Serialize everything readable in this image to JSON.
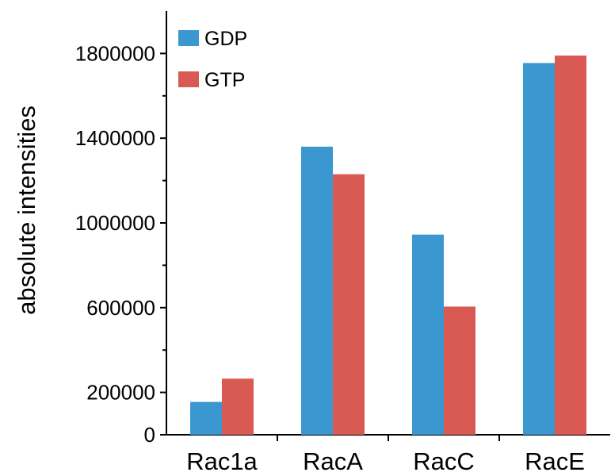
{
  "chart_data": {
    "type": "bar",
    "title": "",
    "xlabel": "",
    "ylabel": "absolute intensities",
    "categories": [
      "Rac1a",
      "RacA",
      "RacC",
      "RacE"
    ],
    "series": [
      {
        "name": "GDP",
        "color": "#3a97d0",
        "values": [
          155000,
          1360000,
          945000,
          1755000
        ]
      },
      {
        "name": "GTP",
        "color": "#d95a52",
        "values": [
          265000,
          1230000,
          605000,
          1790000
        ]
      }
    ],
    "ylim": [
      0,
      2000000
    ],
    "yticks": [
      0,
      200000,
      600000,
      1000000,
      1400000,
      1800000
    ],
    "yticks_labels": [
      "0",
      "200000",
      "600000",
      "1000000",
      "1400000",
      "1800000"
    ],
    "minor_yticks": [
      400000,
      800000,
      1200000,
      1600000
    ],
    "grid": false,
    "legend_position": "top-left"
  }
}
